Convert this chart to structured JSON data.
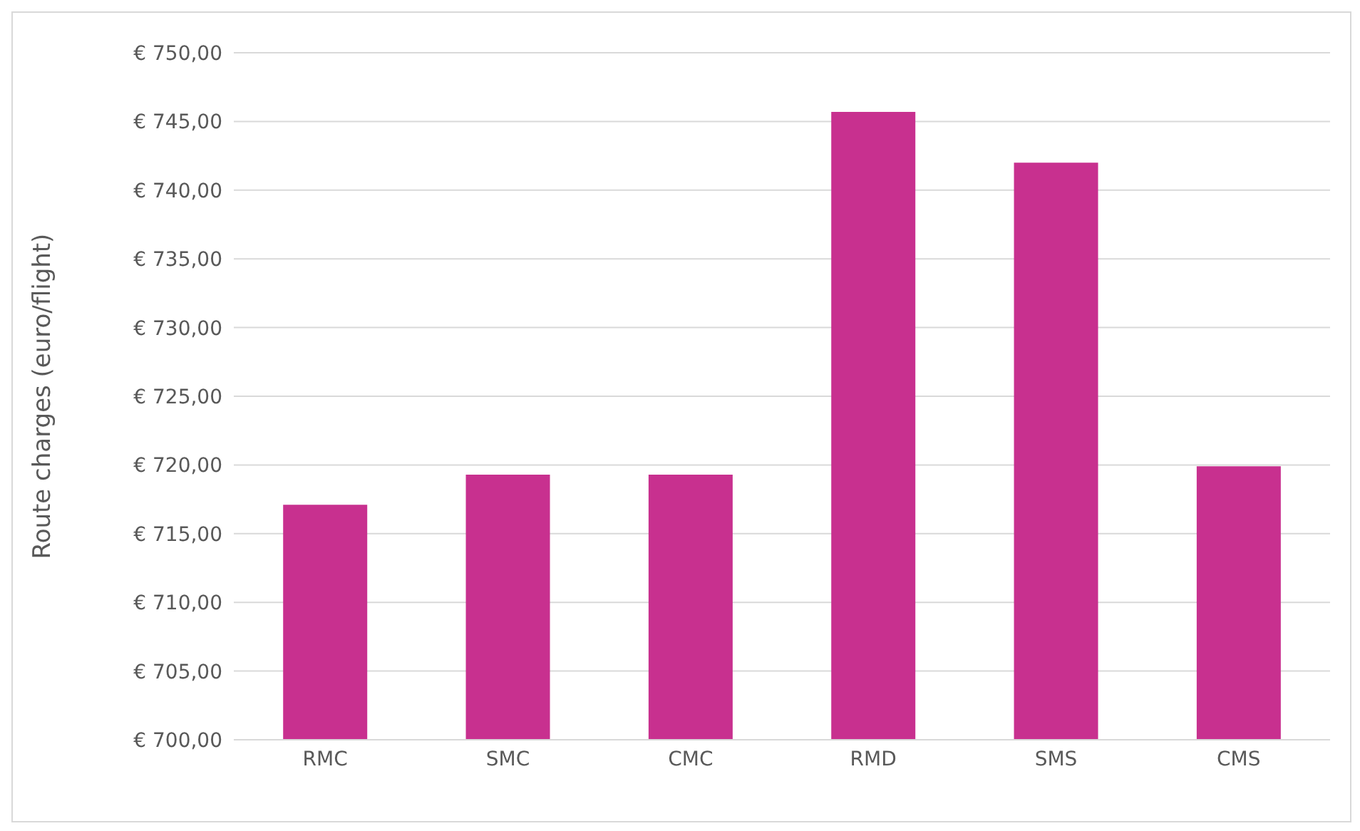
{
  "chart_data": {
    "type": "bar",
    "ylabel": "Route charges (euro/flight)",
    "categories": [
      "RMC",
      "SMC",
      "CMC",
      "RMD",
      "SMS",
      "CMS"
    ],
    "values": [
      717.1,
      719.3,
      719.3,
      745.7,
      742.0,
      719.9
    ],
    "color": "#c8308f",
    "ylim": [
      700,
      750
    ],
    "yticks": [
      {
        "value": 700,
        "label": "€ 700,00"
      },
      {
        "value": 705,
        "label": "€ 705,00"
      },
      {
        "value": 710,
        "label": "€ 710,00"
      },
      {
        "value": 715,
        "label": "€ 715,00"
      },
      {
        "value": 720,
        "label": "€ 720,00"
      },
      {
        "value": 725,
        "label": "€ 725,00"
      },
      {
        "value": 730,
        "label": "€ 730,00"
      },
      {
        "value": 735,
        "label": "€ 735,00"
      },
      {
        "value": 740,
        "label": "€ 740,00"
      },
      {
        "value": 745,
        "label": "€ 745,00"
      },
      {
        "value": 750,
        "label": "€ 750,00"
      }
    ],
    "grid": "y"
  }
}
